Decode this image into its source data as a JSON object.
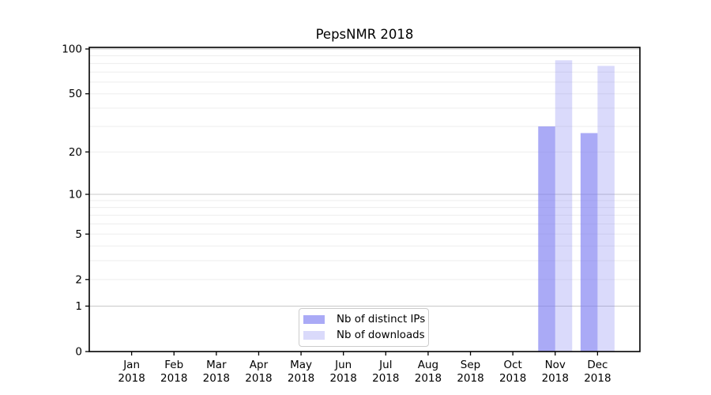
{
  "chart_data": {
    "type": "bar",
    "title": "PepsNMR 2018",
    "x_ticks": [
      {
        "month": "Jan",
        "year": "2018"
      },
      {
        "month": "Feb",
        "year": "2018"
      },
      {
        "month": "Mar",
        "year": "2018"
      },
      {
        "month": "Apr",
        "year": "2018"
      },
      {
        "month": "May",
        "year": "2018"
      },
      {
        "month": "Jun",
        "year": "2018"
      },
      {
        "month": "Jul",
        "year": "2018"
      },
      {
        "month": "Aug",
        "year": "2018"
      },
      {
        "month": "Sep",
        "year": "2018"
      },
      {
        "month": "Oct",
        "year": "2018"
      },
      {
        "month": "Nov",
        "year": "2018"
      },
      {
        "month": "Dec",
        "year": "2018"
      }
    ],
    "series": [
      {
        "name": "Nb of distinct IPs",
        "values": [
          0,
          0,
          0,
          0,
          0,
          0,
          0,
          0,
          0,
          0,
          30,
          27
        ],
        "color": "#7878f0",
        "opacity": 0.63
      },
      {
        "name": "Nb of downloads",
        "values": [
          0,
          0,
          0,
          0,
          0,
          0,
          0,
          0,
          0,
          0,
          84,
          77
        ],
        "color": "#7878f0",
        "opacity": 0.27
      }
    ],
    "y_axis": {
      "scale": "log10(value+1)",
      "ylim": [
        0,
        104
      ],
      "tick_values": [
        0,
        1,
        2,
        5,
        10,
        20,
        50,
        100
      ],
      "tick_labels": [
        "0",
        "1",
        "2",
        "5",
        "10",
        "20",
        "50",
        "100"
      ],
      "major_grid_values": [
        1,
        10,
        100
      ],
      "minor_grid_values": [
        2,
        3,
        4,
        5,
        6,
        7,
        8,
        9,
        20,
        30,
        40,
        50,
        60,
        70,
        80,
        90
      ]
    },
    "legend_position": "bottom-center",
    "grid": true
  },
  "colors": {
    "bar_base": "#7878f0",
    "bar_distinct_ips_rendered": "#aaaaf2",
    "bar_downloads_rendered": "#dbdbfa",
    "grid_minor": "#ededed",
    "grid_major": "#c9c9c9",
    "axis": "#000000",
    "tick_text": "#000000",
    "legend_border": "#cccccc",
    "background": "#ffffff"
  }
}
